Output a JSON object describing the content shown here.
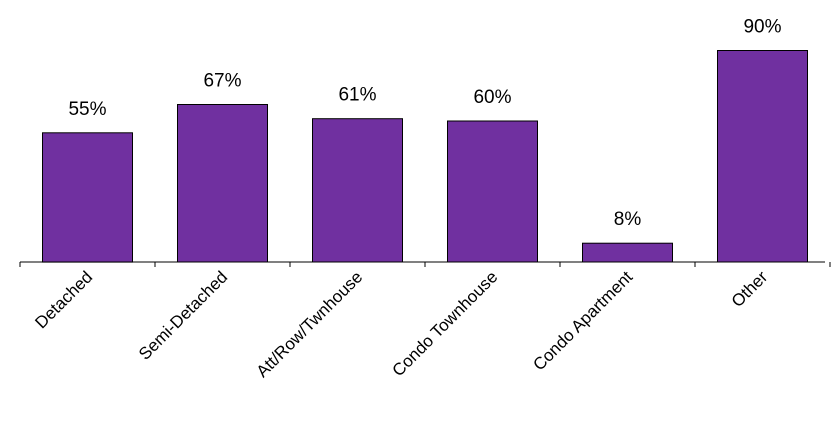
{
  "chart_data": {
    "type": "bar",
    "title": "",
    "xlabel": "",
    "ylabel": "",
    "categories": [
      "Detached",
      "Semi-Detached",
      "Att/Row/Twnhouse",
      "Condo Townhouse",
      "Condo Apartment",
      "Other"
    ],
    "values": [
      55,
      67,
      61,
      60,
      8,
      90
    ],
    "data_labels": [
      "55%",
      "67%",
      "61%",
      "60%",
      "8%",
      "90%"
    ],
    "unit": "%",
    "ylim": [
      0,
      100
    ],
    "grid": false,
    "legend": "none",
    "colors": {
      "bar_fill": "#7030a0",
      "bar_stroke": "#000000",
      "axis": "#000000"
    }
  }
}
